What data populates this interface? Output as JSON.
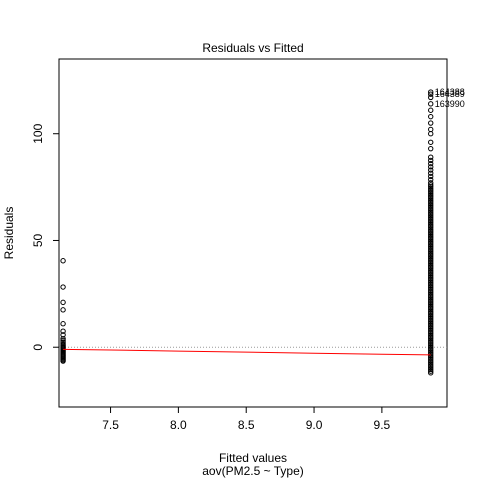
{
  "chart_data": {
    "type": "scatter",
    "title": "Residuals vs Fitted",
    "xlabel": "Fitted values",
    "subtitle": "aov(PM2.5 ~ Type)",
    "ylabel": "Residuals",
    "xlim": [
      7.12,
      9.98
    ],
    "ylim": [
      -28,
      135
    ],
    "x_ticks": [
      7.5,
      8.0,
      8.5,
      9.0,
      9.5
    ],
    "x_tick_labels": [
      "7.5",
      "8.0",
      "8.5",
      "9.0",
      "9.5"
    ],
    "y_ticks": [
      0,
      50,
      100
    ],
    "y_tick_labels": [
      "0",
      "50",
      "100"
    ],
    "grid": false,
    "reference_line": {
      "y": 0,
      "style": "dotted",
      "color": "#999999"
    },
    "series": [
      {
        "x": 7.15,
        "residuals": [
          40.5,
          28.2,
          21.0,
          17.5,
          11.0,
          7.5,
          5.8,
          4.0,
          3.2,
          2.4,
          1.6,
          1.0,
          0.5,
          0.0,
          -0.5,
          -1.0,
          -1.5,
          -2.0,
          -2.5,
          -3.0,
          -3.5,
          -4.0,
          -4.5,
          -5.0,
          -5.5,
          -6.0,
          -6.5
        ],
        "marker": "open-circle",
        "color": "#000000"
      },
      {
        "x": 9.86,
        "residuals": [
          119.5,
          118.5,
          117.0,
          114.0,
          111.0,
          108.0,
          105.0,
          102.0,
          100.0,
          96.0,
          93.0,
          89.0,
          87.5,
          86.0,
          84.5,
          83.0,
          81.5,
          80.0,
          78.5,
          77.0
        ],
        "dense_band": [
          -12,
          76
        ],
        "marker": "open-circle",
        "color": "#000000"
      }
    ],
    "smooth_line": {
      "color": "#ff0000",
      "points": [
        [
          7.15,
          -1.0
        ],
        [
          7.5,
          -1.3
        ],
        [
          8.0,
          -1.8
        ],
        [
          8.5,
          -2.3
        ],
        [
          9.0,
          -2.8
        ],
        [
          9.5,
          -3.3
        ],
        [
          9.86,
          -3.6
        ]
      ]
    },
    "point_labels": [
      {
        "text": "164388",
        "x": 9.86,
        "y": 119.5
      },
      {
        "text": "164389",
        "x": 9.86,
        "y": 118.5
      },
      {
        "text": "163990",
        "x": 9.86,
        "y": 114.0
      }
    ]
  }
}
